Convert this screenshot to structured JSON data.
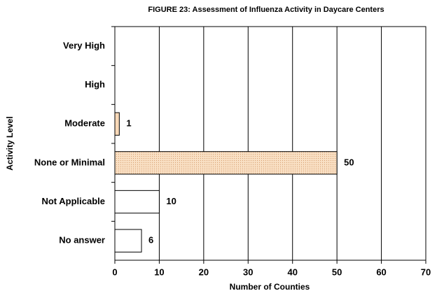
{
  "chart_data": {
    "type": "hbar",
    "title": "FIGURE  23: Assessment of Influenza Activity in Daycare Centers",
    "x_label": "Number of Counties",
    "y_label": "Activity Level",
    "categories": [
      "Very High",
      "High",
      "Moderate",
      "None or Minimal",
      "Not Applicable",
      "No answer"
    ],
    "values": [
      null,
      null,
      1,
      50,
      10,
      6
    ],
    "colors": [
      "#ffffff",
      "#ffffff",
      "#f9d9b8",
      "#f9e4cf",
      "#ffffff",
      "#ffffff"
    ],
    "xlim": [
      0,
      70
    ],
    "xticks": [
      0,
      10,
      20,
      30,
      40,
      50,
      60,
      70
    ],
    "grid": true
  }
}
